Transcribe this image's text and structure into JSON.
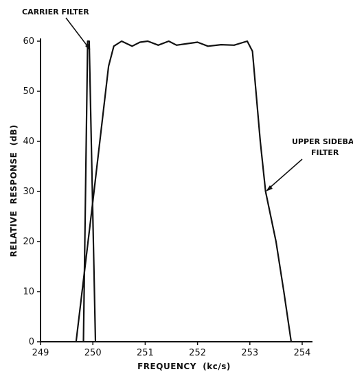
{
  "chart_data": {
    "type": "line",
    "title": "",
    "xlabel": "FREQUENCY  (kc/s)",
    "ylabel": "RELATIVE  RESPONSE  (dB)",
    "xlim": [
      249,
      254.2
    ],
    "ylim": [
      0,
      60
    ],
    "xticks": [
      249,
      250,
      251,
      252,
      253,
      254
    ],
    "yticks": [
      0,
      10,
      20,
      30,
      40,
      50,
      60
    ],
    "grid": false,
    "series": [
      {
        "name": "CARRIER FILTER",
        "x": [
          249.82,
          249.9,
          249.93,
          250.05
        ],
        "y": [
          0,
          60,
          60,
          0
        ]
      },
      {
        "name": "UPPER SIDEBAND FILTER",
        "x": [
          249.68,
          250.0,
          250.3,
          250.4,
          250.55,
          250.75,
          250.9,
          251.05,
          251.25,
          251.45,
          251.6,
          251.8,
          252.0,
          252.2,
          252.45,
          252.7,
          252.95,
          253.05,
          253.1,
          253.2,
          253.3,
          253.5,
          253.65,
          253.79
        ],
        "y": [
          0,
          28,
          55,
          59,
          60,
          59,
          59.8,
          60,
          59.2,
          60,
          59.2,
          59.5,
          59.8,
          59.0,
          59.3,
          59.2,
          60,
          58,
          52,
          40,
          30,
          20,
          10,
          0
        ]
      }
    ],
    "annotations": [
      {
        "text": "CARRIER FILTER",
        "x": 249.9,
        "y": 58
      },
      {
        "text": "UPPER SIDEBAND FILTER",
        "x": 253.3,
        "y": 30
      }
    ],
    "colors": {
      "line": "#111111",
      "background": "#ffffff"
    }
  }
}
